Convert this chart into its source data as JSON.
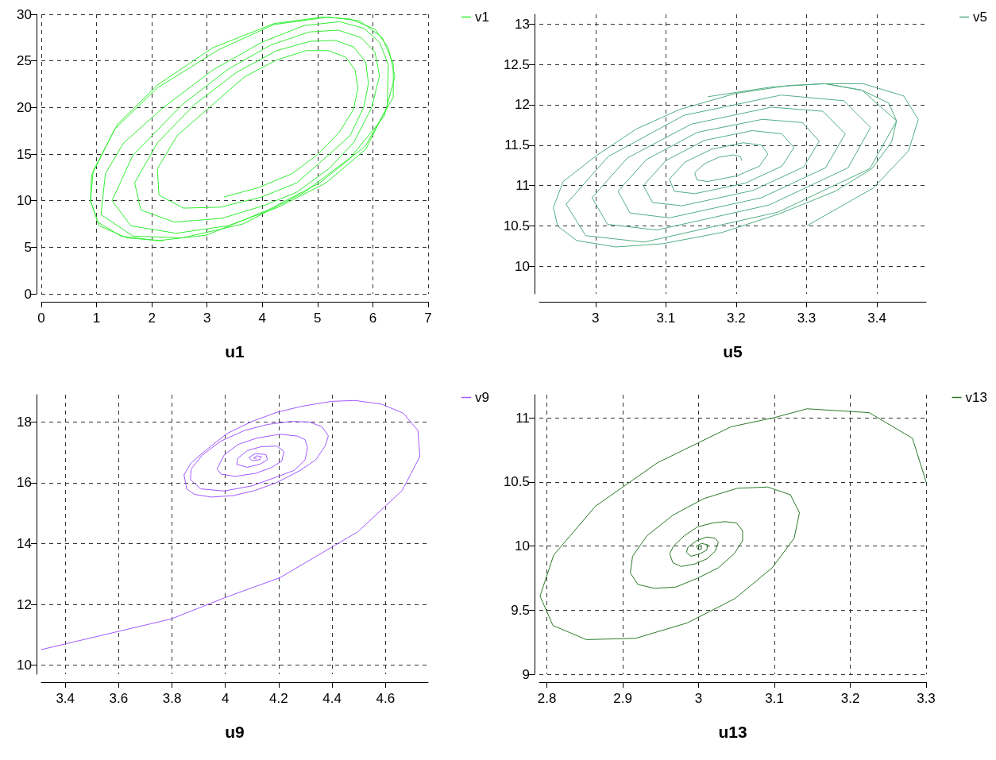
{
  "chart_data": [
    {
      "type": "line",
      "xlabel": "u1",
      "xlim": [
        0,
        7
      ],
      "ylim": [
        0,
        30
      ],
      "xticks": [
        0,
        1,
        2,
        3,
        4,
        5,
        6,
        7
      ],
      "yticks": [
        0,
        5,
        10,
        15,
        20,
        25,
        30
      ],
      "grid": true,
      "legend": "top right",
      "marker": "none",
      "line_style": "solid",
      "series": [
        {
          "name": "v1",
          "color": "#33ee33",
          "x": [
            3.31,
            3.93,
            4.54,
            5.01,
            5.4,
            5.65,
            5.73,
            5.68,
            5.51,
            5.2,
            4.79,
            4.26,
            3.68,
            3.1,
            2.46,
            2.1,
            2.13,
            2.57,
            3.24,
            3.99,
            4.62,
            5.2,
            5.59,
            5.84,
            5.92,
            5.87,
            5.65,
            5.32,
            4.87,
            4.26,
            3.54,
            2.77,
            2.1,
            1.69,
            1.8,
            2.41,
            3.27,
            4.04,
            4.62,
            5.2,
            5.65,
            5.98,
            6.12,
            6.04,
            5.79,
            5.37,
            4.85,
            4.15,
            3.38,
            2.55,
            1.66,
            1.28,
            1.62,
            2.44,
            3.38,
            4.29,
            5.15,
            5.87,
            6.26,
            6.28,
            6.12,
            5.84,
            5.4,
            4.76,
            3.99,
            3.1,
            2.21,
            1.49,
            1.16,
            1.08,
            1.66,
            2.55,
            3.65,
            4.76,
            5.59,
            6.2,
            6.4,
            6.28,
            6.04,
            5.59,
            5.09,
            4.21,
            3.1,
            2.1,
            1.38,
            0.94,
            0.89,
            1.02,
            1.44,
            2.1,
            2.99,
            4.1,
            5.04,
            5.87,
            6.37,
            6.37,
            6.17,
            5.76,
            5.2,
            4.21,
            3.21,
            2.1,
            1.33,
            0.91,
            0.89,
            1.05,
            1.55,
            2.21
          ],
          "values": [
            10.4,
            11.4,
            12.9,
            15.0,
            17.4,
            19.8,
            22.1,
            24.0,
            25.4,
            26.1,
            26.1,
            25.1,
            23.3,
            20.3,
            17.0,
            13.4,
            10.6,
            9.2,
            9.3,
            10.4,
            11.9,
            14.9,
            17.0,
            20.1,
            22.6,
            24.9,
            26.5,
            27.2,
            27.1,
            26.1,
            23.8,
            20.3,
            16.2,
            11.9,
            9.0,
            7.7,
            8.1,
            9.5,
            10.9,
            13.4,
            16.2,
            20.0,
            23.4,
            25.9,
            27.5,
            28.3,
            28.1,
            26.7,
            24.1,
            20.3,
            14.9,
            10.0,
            7.3,
            6.5,
            7.3,
            9.3,
            11.9,
            15.5,
            20.1,
            24.6,
            27.0,
            28.5,
            29.2,
            28.8,
            27.0,
            24.0,
            20.0,
            16.2,
            12.9,
            8.5,
            6.2,
            6.0,
            7.5,
            10.9,
            14.6,
            19.0,
            23.3,
            26.4,
            28.4,
            29.5,
            29.7,
            29.0,
            26.4,
            22.4,
            18.2,
            13.2,
            10.0,
            7.7,
            6.2,
            5.7,
            6.3,
            9.0,
            11.9,
            15.9,
            21.1,
            24.7,
            27.5,
            29.3,
            29.7,
            28.9,
            26.2,
            22.1,
            17.7,
            12.7,
            10.0,
            7.3,
            6.0,
            5.7
          ]
        }
      ]
    },
    {
      "type": "line",
      "xlabel": "u5",
      "xlim": [
        2.92,
        3.47
      ],
      "ylim": [
        9.66,
        13.12
      ],
      "xticks": [
        3,
        3.1,
        3.2,
        3.3,
        3.4
      ],
      "yticks": [
        10,
        10.5,
        11,
        11.5,
        12,
        12.5,
        13
      ],
      "grid": true,
      "legend": "top right",
      "marker": "none",
      "line_style": "solid",
      "series": [
        {
          "name": "v5",
          "color": "#52ae84",
          "x": [
            3.208,
            3.206,
            3.196,
            3.175,
            3.155,
            3.141,
            3.144,
            3.159,
            3.201,
            3.233,
            3.245,
            3.236,
            3.21,
            3.165,
            3.127,
            3.105,
            3.112,
            3.141,
            3.213,
            3.265,
            3.282,
            3.265,
            3.223,
            3.155,
            3.1,
            3.068,
            3.081,
            3.123,
            3.224,
            3.296,
            3.318,
            3.294,
            3.237,
            3.145,
            3.072,
            3.032,
            3.049,
            3.105,
            3.236,
            3.327,
            3.355,
            3.323,
            3.25,
            3.136,
            3.045,
            2.995,
            3.017,
            3.087,
            3.247,
            3.359,
            3.391,
            3.353,
            3.264,
            3.126,
            3.018,
            2.958,
            2.986,
            3.069,
            3.259,
            3.39,
            3.428,
            3.379,
            3.327,
            3.275,
            3.199,
            3.119,
            3.058,
            3.001,
            2.954,
            2.94,
            2.946,
            2.973,
            3.029,
            3.095,
            3.18,
            3.261,
            3.341,
            3.393,
            3.421,
            3.428,
            3.417,
            3.379,
            3.327,
            null,
            3.301,
            3.395,
            3.445,
            3.459,
            3.438,
            3.381,
            3.322,
            3.25,
            3.16
          ],
          "values": [
            11.31,
            11.36,
            11.38,
            11.35,
            11.27,
            11.16,
            11.07,
            11.05,
            11.12,
            11.24,
            11.39,
            11.5,
            11.53,
            11.45,
            11.29,
            11.08,
            10.93,
            10.9,
            11.03,
            11.24,
            11.47,
            11.64,
            11.68,
            11.56,
            11.31,
            11.0,
            10.79,
            10.75,
            10.94,
            11.23,
            11.55,
            11.78,
            11.82,
            11.66,
            11.32,
            10.93,
            10.66,
            10.6,
            10.85,
            11.22,
            11.64,
            11.92,
            11.97,
            11.76,
            11.34,
            10.85,
            10.52,
            10.45,
            10.76,
            11.22,
            11.72,
            12.05,
            12.12,
            11.87,
            11.36,
            10.77,
            10.38,
            10.3,
            10.67,
            11.21,
            11.8,
            12.18,
            12.26,
            12.24,
            12.14,
            11.94,
            11.7,
            11.37,
            11.05,
            10.73,
            10.5,
            10.32,
            10.24,
            10.28,
            10.42,
            10.65,
            10.93,
            11.21,
            11.54,
            11.8,
            12.02,
            12.18,
            12.26,
            null,
            10.505,
            10.97,
            11.43,
            11.82,
            12.11,
            12.26,
            12.26,
            12.22,
            12.1
          ]
        }
      ]
    },
    {
      "type": "line",
      "xlabel": "u9",
      "xlim": [
        3.31,
        4.76
      ],
      "ylim": [
        9.7,
        18.9
      ],
      "xticks": [
        3.4,
        3.6,
        3.8,
        4,
        4.2,
        4.4,
        4.6
      ],
      "yticks": [
        10,
        12,
        14,
        16,
        18
      ],
      "grid": true,
      "legend": "top right",
      "marker": "none",
      "line_style": "solid",
      "series": [
        {
          "name": "v9",
          "color": "#a259ff",
          "x": [
            3.31,
            3.797,
            4.001,
            4.205,
            4.497,
            4.663,
            4.729,
            4.722,
            4.667,
            4.585,
            4.486,
            4.398,
            4.287,
            4.193,
            4.1,
            4.006,
            3.925,
            3.872,
            3.845,
            3.855,
            3.884,
            3.948,
            4.03,
            4.112,
            4.193,
            4.281,
            4.339,
            4.374,
            4.386,
            4.363,
            4.316,
            4.246,
            4.158,
            4.071,
            3.983,
            3.913,
            3.872,
            3.869,
            3.907,
            3.995,
            4.1,
            4.182,
            4.258,
            4.299,
            4.308,
            4.299,
            4.269,
            4.205,
            4.117,
            4.047,
            3.995,
            3.969,
            3.983,
            4.036,
            4.112,
            4.17,
            4.211,
            4.22,
            4.193,
            4.135,
            4.082,
            4.047,
            4.043,
            4.082,
            4.129,
            4.158,
            4.152,
            4.112,
            4.088,
            4.1,
            4.129,
            4.135,
            4.117,
            4.106,
            4.117
          ],
          "values": [
            10.51,
            11.52,
            12.23,
            12.88,
            14.39,
            15.75,
            16.86,
            17.72,
            18.29,
            18.59,
            18.71,
            18.68,
            18.52,
            18.32,
            18.02,
            17.62,
            17.06,
            16.66,
            16.26,
            15.8,
            15.62,
            15.53,
            15.58,
            15.75,
            16.01,
            16.41,
            16.76,
            17.21,
            17.54,
            17.84,
            18.0,
            18.02,
            17.92,
            17.72,
            17.37,
            16.91,
            16.46,
            16.11,
            15.8,
            15.73,
            15.9,
            16.16,
            16.41,
            16.76,
            17.16,
            17.42,
            17.54,
            17.6,
            17.47,
            17.26,
            16.91,
            16.46,
            16.29,
            16.21,
            16.31,
            16.49,
            16.71,
            17.03,
            17.21,
            17.19,
            17.06,
            16.81,
            16.61,
            16.51,
            16.61,
            16.76,
            16.93,
            16.96,
            16.83,
            16.73,
            16.76,
            16.86,
            16.89,
            16.81,
            16.81
          ]
        }
      ]
    },
    {
      "type": "line",
      "xlabel": "u13",
      "xlim": [
        2.79,
        3.3
      ],
      "ylim": [
        9,
        11.18
      ],
      "xticks": [
        2.8,
        2.9,
        3,
        3.1,
        3.2,
        3.3
      ],
      "yticks": [
        9,
        9.5,
        10,
        10.5,
        11
      ],
      "grid": true,
      "legend": "top right",
      "marker": "none",
      "line_style": "solid",
      "series": [
        {
          "name": "v13",
          "color": "#2a7a2a",
          "x": [
            3.3,
            3.282,
            3.225,
            3.143,
            3.099,
            3.043,
            2.946,
            2.864,
            2.809,
            2.791,
            2.808,
            2.852,
            2.917,
            2.985,
            3.048,
            3.097,
            3.126,
            3.133,
            3.121,
            3.091,
            3.051,
            3.007,
            2.966,
            2.932,
            2.913,
            2.91,
            2.92,
            2.942,
            2.97,
            2.999,
            3.026,
            3.047,
            3.058,
            3.058,
            3.05,
            3.035,
            3.019,
            2.999,
            2.981,
            2.967,
            2.962,
            2.966,
            2.977,
            2.995,
            3.011,
            3.022,
            3.026,
            3.022,
            3.011,
            2.997,
            2.986,
            2.984,
            2.99,
            3.002,
            3.011,
            3.012,
            3.004,
            2.997,
            3.0,
            3.004,
            3.003
          ],
          "values": [
            10.5,
            10.84,
            11.04,
            11.07,
            11.0,
            10.93,
            10.65,
            10.31,
            9.93,
            9.61,
            9.38,
            9.27,
            9.28,
            9.4,
            9.59,
            9.83,
            10.06,
            10.26,
            10.4,
            10.46,
            10.45,
            10.37,
            10.24,
            10.08,
            9.92,
            9.79,
            9.7,
            9.67,
            9.68,
            9.75,
            9.83,
            9.94,
            10.04,
            10.12,
            10.18,
            10.19,
            10.18,
            10.15,
            10.08,
            10.0,
            9.94,
            9.87,
            9.84,
            9.86,
            9.9,
            9.96,
            10.03,
            10.06,
            10.07,
            10.04,
            9.99,
            9.95,
            9.92,
            9.94,
            9.97,
            10.01,
            10.02,
            10.0,
            9.97,
            9.98,
            10.0
          ]
        }
      ]
    }
  ]
}
